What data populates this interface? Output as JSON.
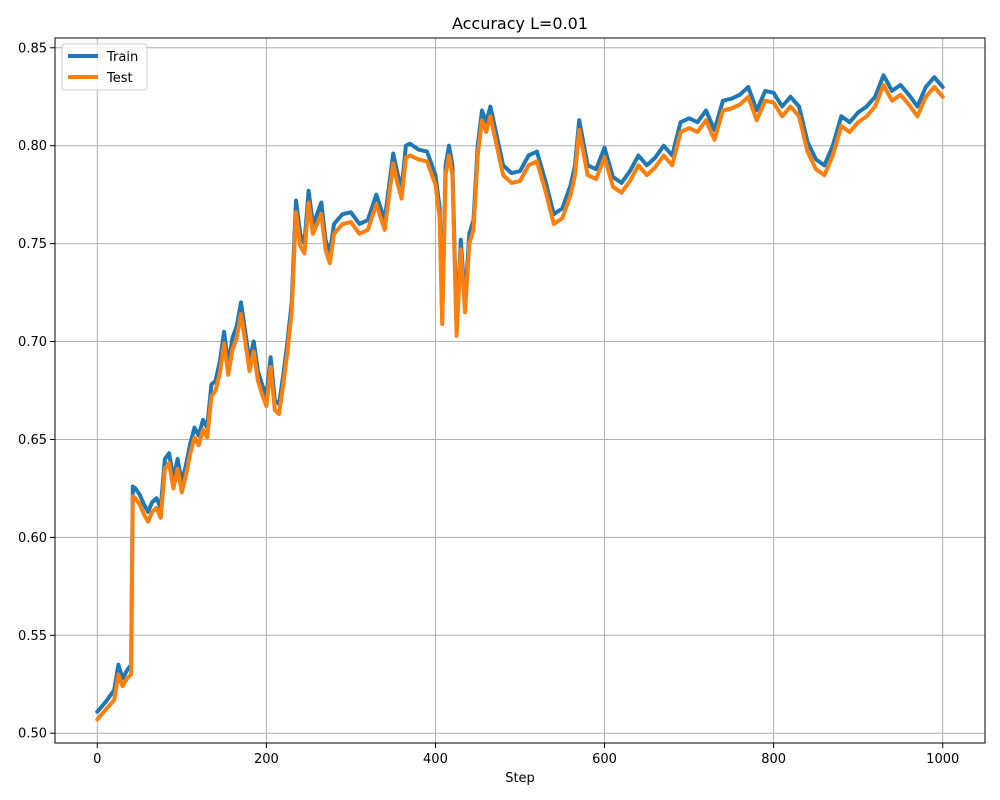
{
  "chart_data": {
    "type": "line",
    "title": "Accuracy L=0.01",
    "xlabel": "Step",
    "ylabel": "",
    "xlim": [
      -50,
      1050
    ],
    "ylim": [
      0.495,
      0.855
    ],
    "xticks": [
      0,
      200,
      400,
      600,
      800,
      1000
    ],
    "xtick_labels": [
      "0",
      "200",
      "400",
      "600",
      "800",
      "1000"
    ],
    "yticks": [
      0.5,
      0.55,
      0.6,
      0.65,
      0.7,
      0.75,
      0.8,
      0.85
    ],
    "ytick_labels": [
      "0.50",
      "0.55",
      "0.60",
      "0.65",
      "0.70",
      "0.75",
      "0.80",
      "0.85"
    ],
    "grid": true,
    "legend_position": "top-left",
    "x": [
      0,
      10,
      20,
      25,
      30,
      35,
      40,
      42,
      45,
      50,
      55,
      60,
      65,
      70,
      75,
      80,
      85,
      90,
      95,
      100,
      105,
      110,
      115,
      120,
      125,
      130,
      135,
      140,
      145,
      150,
      155,
      160,
      165,
      170,
      175,
      180,
      185,
      190,
      195,
      200,
      205,
      210,
      215,
      220,
      225,
      230,
      235,
      240,
      245,
      250,
      255,
      260,
      265,
      270,
      275,
      280,
      290,
      300,
      310,
      320,
      330,
      340,
      350,
      355,
      360,
      365,
      370,
      380,
      390,
      400,
      405,
      408,
      412,
      416,
      420,
      425,
      430,
      435,
      440,
      445,
      450,
      455,
      460,
      465,
      470,
      480,
      490,
      500,
      510,
      520,
      530,
      540,
      550,
      560,
      565,
      570,
      580,
      590,
      600,
      610,
      620,
      630,
      640,
      650,
      660,
      670,
      680,
      690,
      700,
      710,
      720,
      730,
      740,
      750,
      760,
      770,
      780,
      790,
      800,
      810,
      820,
      830,
      840,
      850,
      860,
      870,
      880,
      890,
      900,
      910,
      920,
      930,
      940,
      950,
      960,
      970,
      980,
      990,
      1000
    ],
    "series": [
      {
        "name": "Train",
        "color": "#1f77b4",
        "values": [
          0.511,
          0.516,
          0.522,
          0.535,
          0.528,
          0.532,
          0.535,
          0.626,
          0.625,
          0.622,
          0.617,
          0.613,
          0.618,
          0.62,
          0.615,
          0.64,
          0.643,
          0.63,
          0.64,
          0.628,
          0.637,
          0.648,
          0.656,
          0.652,
          0.66,
          0.656,
          0.678,
          0.68,
          0.69,
          0.705,
          0.688,
          0.702,
          0.708,
          0.72,
          0.705,
          0.69,
          0.7,
          0.685,
          0.678,
          0.672,
          0.692,
          0.67,
          0.668,
          0.683,
          0.7,
          0.72,
          0.772,
          0.755,
          0.75,
          0.777,
          0.76,
          0.765,
          0.771,
          0.752,
          0.745,
          0.76,
          0.765,
          0.766,
          0.76,
          0.762,
          0.775,
          0.762,
          0.796,
          0.786,
          0.778,
          0.8,
          0.801,
          0.798,
          0.797,
          0.785,
          0.768,
          0.712,
          0.79,
          0.8,
          0.79,
          0.707,
          0.752,
          0.72,
          0.755,
          0.762,
          0.8,
          0.818,
          0.812,
          0.82,
          0.81,
          0.79,
          0.786,
          0.787,
          0.795,
          0.797,
          0.782,
          0.765,
          0.768,
          0.78,
          0.79,
          0.813,
          0.79,
          0.788,
          0.799,
          0.784,
          0.781,
          0.787,
          0.795,
          0.79,
          0.794,
          0.8,
          0.795,
          0.812,
          0.814,
          0.812,
          0.818,
          0.808,
          0.823,
          0.824,
          0.826,
          0.83,
          0.818,
          0.828,
          0.827,
          0.82,
          0.825,
          0.82,
          0.802,
          0.793,
          0.79,
          0.8,
          0.815,
          0.812,
          0.817,
          0.82,
          0.825,
          0.836,
          0.828,
          0.831,
          0.826,
          0.82,
          0.83,
          0.835,
          0.83
        ]
      },
      {
        "name": "Test",
        "color": "#ff7f0e",
        "values": [
          0.507,
          0.512,
          0.517,
          0.53,
          0.524,
          0.528,
          0.53,
          0.621,
          0.62,
          0.617,
          0.612,
          0.608,
          0.613,
          0.615,
          0.61,
          0.635,
          0.638,
          0.625,
          0.635,
          0.623,
          0.632,
          0.643,
          0.651,
          0.647,
          0.655,
          0.651,
          0.672,
          0.675,
          0.684,
          0.699,
          0.683,
          0.696,
          0.702,
          0.714,
          0.7,
          0.685,
          0.695,
          0.68,
          0.673,
          0.667,
          0.687,
          0.665,
          0.663,
          0.678,
          0.695,
          0.715,
          0.766,
          0.749,
          0.745,
          0.771,
          0.755,
          0.76,
          0.765,
          0.747,
          0.74,
          0.755,
          0.76,
          0.761,
          0.755,
          0.757,
          0.77,
          0.757,
          0.791,
          0.781,
          0.773,
          0.794,
          0.795,
          0.793,
          0.792,
          0.78,
          0.763,
          0.709,
          0.785,
          0.795,
          0.785,
          0.703,
          0.747,
          0.715,
          0.75,
          0.757,
          0.795,
          0.813,
          0.807,
          0.815,
          0.805,
          0.785,
          0.781,
          0.782,
          0.79,
          0.792,
          0.777,
          0.76,
          0.763,
          0.775,
          0.785,
          0.808,
          0.785,
          0.783,
          0.794,
          0.779,
          0.776,
          0.782,
          0.79,
          0.785,
          0.789,
          0.795,
          0.79,
          0.807,
          0.809,
          0.807,
          0.813,
          0.803,
          0.818,
          0.819,
          0.821,
          0.825,
          0.813,
          0.823,
          0.822,
          0.815,
          0.82,
          0.815,
          0.797,
          0.788,
          0.785,
          0.795,
          0.81,
          0.807,
          0.812,
          0.815,
          0.82,
          0.831,
          0.823,
          0.826,
          0.821,
          0.815,
          0.825,
          0.83,
          0.825
        ]
      }
    ]
  }
}
